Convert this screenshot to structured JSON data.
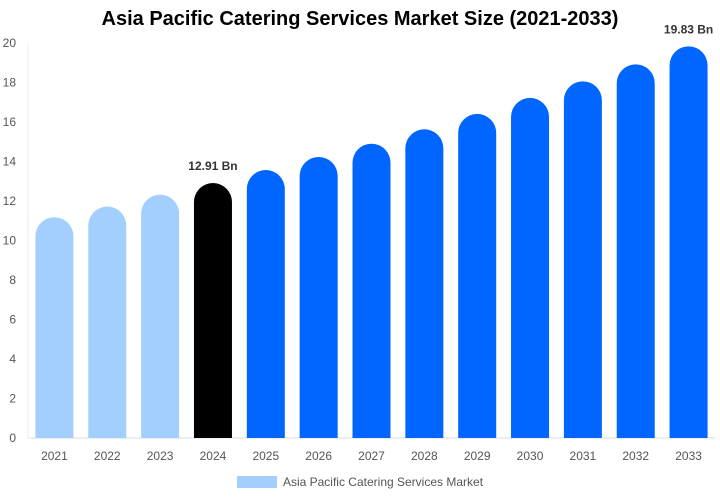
{
  "chart_data": {
    "type": "bar",
    "title": "Asia Pacific Catering Services Market Size (2021-2033)",
    "categories": [
      "2021",
      "2022",
      "2023",
      "2024",
      "2025",
      "2026",
      "2027",
      "2028",
      "2029",
      "2030",
      "2031",
      "2032",
      "2033"
    ],
    "series": [
      {
        "name": "Asia Pacific Catering Services Market",
        "values": [
          11.18,
          11.72,
          12.32,
          12.91,
          13.57,
          14.23,
          14.9,
          15.63,
          16.41,
          17.22,
          18.06,
          18.92,
          19.83
        ]
      }
    ],
    "data_labels": {
      "3": "12.91 Bn",
      "12": "19.83 Bn"
    },
    "ylim": [
      0,
      20
    ],
    "yticks": [
      0,
      2,
      4,
      6,
      8,
      10,
      12,
      14,
      16,
      18,
      20
    ],
    "grid": false,
    "legend": "bottom",
    "colors": {
      "historical": "#a3cfff",
      "current": "#000000",
      "forecast": "#0066ff"
    },
    "bar_color_groups": [
      "historical",
      "historical",
      "historical",
      "current",
      "forecast",
      "forecast",
      "forecast",
      "forecast",
      "forecast",
      "forecast",
      "forecast",
      "forecast",
      "forecast"
    ]
  }
}
